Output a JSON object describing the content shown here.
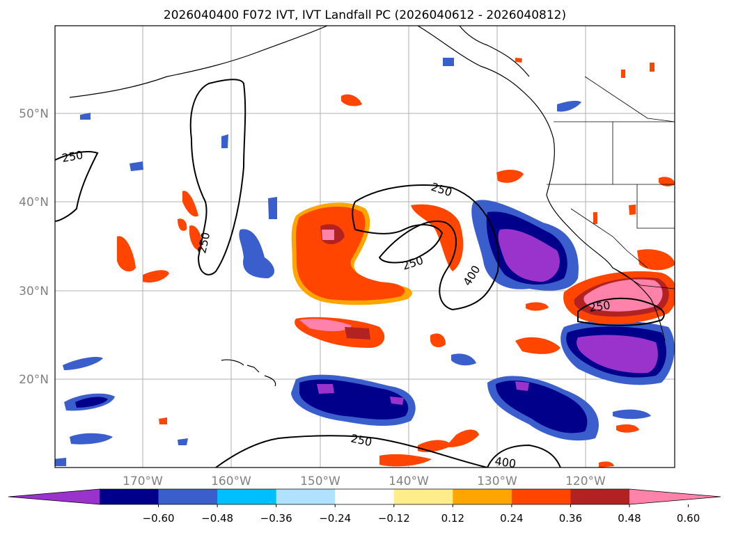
{
  "title": "2026040400 F072 IVT, IVT Landfall PC (2026040612 - 2026040812)",
  "lat_labels": [
    "50°N",
    "40°N",
    "30°N",
    "20°N"
  ],
  "lon_labels": [
    "170°W",
    "160°W",
    "150°W",
    "140°W",
    "130°W",
    "120°W"
  ],
  "contours": {
    "levels": [
      "250",
      "400"
    ],
    "labels": [
      "250",
      "250",
      "250",
      "250",
      "400",
      "250",
      "400",
      "250"
    ]
  },
  "colorbar": {
    "ticks": [
      "−0.60",
      "−0.48",
      "−0.36",
      "−0.24",
      "−0.12",
      "0.12",
      "0.24",
      "0.36",
      "0.48",
      "0.60"
    ],
    "colors": [
      "#9933cc",
      "#00008b",
      "#3a5fcd",
      "#00bfff",
      "#b0e2ff",
      "#ffffff",
      "#ffec8b",
      "#ffa500",
      "#ff4500",
      "#b22222",
      "#ff82ab"
    ]
  },
  "icons": {
    "under_arrow": "left-triangle-extend",
    "over_arrow": "right-triangle-extend"
  }
}
